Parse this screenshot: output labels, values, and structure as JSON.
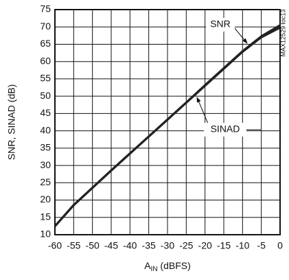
{
  "chart_data": {
    "type": "line",
    "y_label": "SNR, SINAD (dB)",
    "x_label": {
      "base": "A",
      "subscript": "IN",
      "rest": " (dBFS)"
    },
    "side_note": "MAX12529 toc13",
    "annotations": [
      "SNR",
      "SINAD"
    ],
    "x": [
      -60,
      -55,
      -50,
      -45,
      -40,
      -35,
      -30,
      -25,
      -20,
      -15,
      -10,
      -5,
      0
    ],
    "series": [
      {
        "name": "SNR",
        "color": "#222222",
        "values": [
          12.5,
          18.6,
          23.6,
          28.6,
          33.5,
          38.4,
          43.3,
          48.2,
          53.2,
          58.1,
          63.0,
          67.3,
          70.5
        ]
      },
      {
        "name": "SINAD",
        "color": "#222222",
        "values": [
          12.4,
          18.5,
          23.5,
          28.5,
          33.4,
          38.3,
          43.2,
          48.1,
          53.0,
          57.9,
          62.8,
          67.0,
          69.8
        ]
      }
    ],
    "xlim": [
      -60,
      0
    ],
    "xticks": [
      -60,
      -55,
      -50,
      -45,
      -40,
      -35,
      -30,
      -25,
      -20,
      -15,
      -10,
      -5,
      0
    ],
    "ylim": [
      10,
      75
    ],
    "yticks": [
      10,
      15,
      20,
      25,
      30,
      35,
      40,
      45,
      50,
      55,
      60,
      65,
      70,
      75
    ],
    "grid": true
  }
}
